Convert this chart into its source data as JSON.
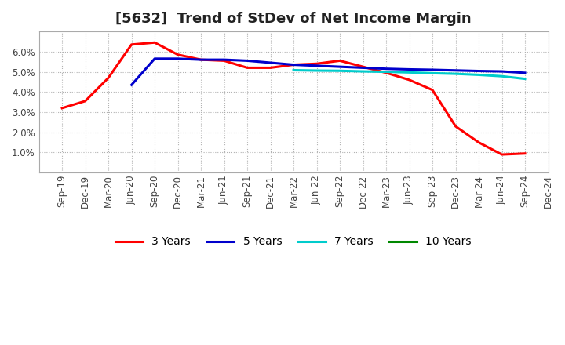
{
  "title": "[5632]  Trend of StDev of Net Income Margin",
  "background_color": "#ffffff",
  "plot_background_color": "#ffffff",
  "grid_color": "#aaaaaa",
  "x_labels": [
    "Sep-19",
    "Dec-19",
    "Mar-20",
    "Jun-20",
    "Sep-20",
    "Dec-20",
    "Mar-21",
    "Jun-21",
    "Sep-21",
    "Dec-21",
    "Mar-22",
    "Jun-22",
    "Sep-22",
    "Dec-22",
    "Mar-23",
    "Jun-23",
    "Sep-23",
    "Dec-23",
    "Mar-24",
    "Jun-24",
    "Sep-24",
    "Dec-24"
  ],
  "series": {
    "3 Years": {
      "color": "#ff0000",
      "values": [
        3.2,
        3.55,
        4.7,
        6.35,
        6.45,
        5.85,
        5.6,
        5.55,
        5.2,
        5.2,
        5.35,
        5.4,
        5.55,
        5.25,
        4.95,
        4.6,
        4.1,
        2.3,
        1.5,
        0.9,
        0.95,
        null
      ]
    },
    "5 Years": {
      "color": "#0000cc",
      "values": [
        null,
        null,
        null,
        4.35,
        5.65,
        5.65,
        5.6,
        5.6,
        5.55,
        5.45,
        5.35,
        5.3,
        5.25,
        5.2,
        5.15,
        5.12,
        5.1,
        5.07,
        5.04,
        5.02,
        4.95,
        null
      ]
    },
    "7 Years": {
      "color": "#00cccc",
      "values": [
        null,
        null,
        null,
        null,
        null,
        null,
        null,
        null,
        null,
        null,
        5.08,
        5.06,
        5.05,
        5.02,
        5.0,
        4.97,
        4.93,
        4.9,
        4.85,
        4.78,
        4.65,
        null
      ]
    },
    "10 Years": {
      "color": "#008800",
      "values": [
        null,
        null,
        null,
        null,
        null,
        null,
        null,
        null,
        null,
        null,
        null,
        null,
        null,
        null,
        null,
        null,
        null,
        null,
        null,
        null,
        null,
        null
      ]
    }
  },
  "ylim": [
    0,
    7.0
  ],
  "yticks": [
    1.0,
    2.0,
    3.0,
    4.0,
    5.0,
    6.0
  ],
  "ytick_labels": [
    "1.0%",
    "2.0%",
    "3.0%",
    "4.0%",
    "5.0%",
    "6.0%"
  ],
  "title_fontsize": 13,
  "tick_fontsize": 8.5,
  "legend_fontsize": 10,
  "linewidth": 2.2
}
